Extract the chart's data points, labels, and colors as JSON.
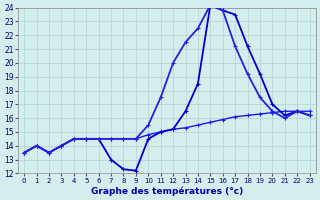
{
  "xlabel": "Graphe des températures (°c)",
  "xlim": [
    -0.5,
    23.5
  ],
  "ylim": [
    12,
    24
  ],
  "xticks": [
    0,
    1,
    2,
    3,
    4,
    5,
    6,
    7,
    8,
    9,
    10,
    11,
    12,
    13,
    14,
    15,
    16,
    17,
    18,
    19,
    20,
    21,
    22,
    23
  ],
  "yticks": [
    12,
    13,
    14,
    15,
    16,
    17,
    18,
    19,
    20,
    21,
    22,
    23,
    24
  ],
  "bg_color": "#d4eeed",
  "grid_color": "#aed4d0",
  "line1": {
    "x": [
      0,
      1,
      2,
      3,
      4,
      5,
      6,
      7,
      8,
      9,
      10,
      11,
      12,
      13,
      14,
      15,
      16,
      17,
      18,
      19,
      20,
      21,
      22,
      23
    ],
    "y": [
      13.5,
      14.0,
      13.5,
      14.0,
      14.5,
      14.5,
      14.5,
      14.5,
      14.5,
      14.5,
      14.8,
      15.0,
      15.2,
      15.3,
      15.5,
      15.7,
      15.9,
      16.1,
      16.2,
      16.3,
      16.4,
      16.5,
      16.5,
      16.5
    ],
    "color": "#1a1aee",
    "lw": 1.0,
    "marker": "+"
  },
  "line2": {
    "x": [
      0,
      1,
      2,
      3,
      4,
      5,
      6,
      7,
      8,
      9,
      10,
      11,
      12,
      13,
      14,
      15,
      16,
      17,
      18,
      19,
      20,
      21,
      22,
      23
    ],
    "y": [
      13.5,
      14.0,
      13.5,
      14.0,
      14.5,
      14.5,
      14.5,
      13.0,
      12.3,
      12.2,
      14.5,
      15.0,
      15.2,
      16.5,
      18.5,
      24.2,
      23.8,
      23.5,
      21.2,
      19.2,
      17.0,
      16.2,
      16.5,
      16.2
    ],
    "color": "#0000cc",
    "lw": 1.3,
    "marker": "+"
  },
  "line3": {
    "x": [
      0,
      1,
      2,
      3,
      4,
      5,
      6,
      7,
      8,
      9,
      10,
      11,
      12,
      13,
      14,
      15,
      16,
      17,
      18,
      19,
      20,
      21,
      22,
      23
    ],
    "y": [
      13.5,
      14.0,
      13.5,
      14.0,
      14.5,
      14.5,
      14.5,
      14.5,
      14.5,
      14.5,
      15.5,
      17.5,
      20.0,
      21.5,
      22.5,
      24.2,
      23.8,
      21.2,
      19.2,
      17.5,
      16.5,
      16.0,
      16.5,
      16.2
    ],
    "color": "#2222dd",
    "lw": 1.3,
    "marker": "+"
  }
}
